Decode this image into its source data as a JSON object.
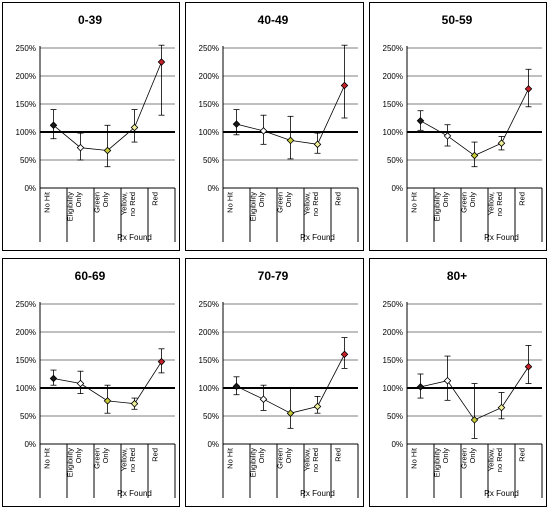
{
  "categories": [
    "No Hit",
    "Eligibility Only",
    "Green Only",
    "Yellow, no Red",
    "Red"
  ],
  "group_label": "Rx Found",
  "point_colors": [
    "#1a1a1a",
    "#ffffff",
    "#c8cc3a",
    "#f0ef9a",
    "#c8202a"
  ],
  "chart_data": [
    {
      "type": "scatter",
      "title": "0-39",
      "categories": [
        "No Hit",
        "Eligibility Only",
        "Green Only",
        "Yellow, no Red",
        "Red"
      ],
      "values": [
        112,
        72,
        67,
        108,
        225
      ],
      "error_low": [
        88,
        50,
        38,
        82,
        130
      ],
      "error_high": [
        140,
        98,
        112,
        140,
        255
      ],
      "ylim": [
        0,
        250
      ],
      "yticks": [
        "0%",
        "50%",
        "100%",
        "150%",
        "200%",
        "250%"
      ],
      "reference_line": 100,
      "grid": true,
      "xlabel": "Rx Found"
    },
    {
      "type": "scatter",
      "title": "40-49",
      "categories": [
        "No Hit",
        "Eligibility Only",
        "Green Only",
        "Yellow, no Red",
        "Red"
      ],
      "values": [
        114,
        102,
        85,
        78,
        183
      ],
      "error_low": [
        95,
        78,
        52,
        62,
        125
      ],
      "error_high": [
        140,
        130,
        128,
        98,
        255
      ],
      "ylim": [
        0,
        250
      ],
      "yticks": [
        "0%",
        "50%",
        "100%",
        "150%",
        "200%",
        "250%"
      ],
      "reference_line": 100,
      "grid": true,
      "xlabel": "Rx Found"
    },
    {
      "type": "scatter",
      "title": "50-59",
      "categories": [
        "No Hit",
        "Eligibility Only",
        "Green Only",
        "Yellow, no Red",
        "Red"
      ],
      "values": [
        120,
        93,
        58,
        80,
        177
      ],
      "error_low": [
        103,
        75,
        38,
        68,
        145
      ],
      "error_high": [
        138,
        113,
        82,
        92,
        212
      ],
      "ylim": [
        0,
        250
      ],
      "yticks": [
        "0%",
        "50%",
        "100%",
        "150%",
        "200%",
        "250%"
      ],
      "reference_line": 100,
      "grid": true,
      "xlabel": "Rx Found"
    },
    {
      "type": "scatter",
      "title": "60-69",
      "categories": [
        "No Hit",
        "Eligibility Only",
        "Green Only",
        "Yellow, no Red",
        "Red"
      ],
      "values": [
        117,
        108,
        77,
        72,
        147
      ],
      "error_low": [
        105,
        90,
        55,
        62,
        127
      ],
      "error_high": [
        132,
        130,
        105,
        82,
        170
      ],
      "ylim": [
        0,
        250
      ],
      "yticks": [
        "0%",
        "50%",
        "100%",
        "150%",
        "200%",
        "250%"
      ],
      "reference_line": 100,
      "grid": true,
      "xlabel": "Rx Found"
    },
    {
      "type": "scatter",
      "title": "70-79",
      "categories": [
        "No Hit",
        "Eligibility Only",
        "Green Only",
        "Yellow, no Red",
        "Red"
      ],
      "values": [
        103,
        80,
        55,
        67,
        160
      ],
      "error_low": [
        88,
        60,
        28,
        55,
        135
      ],
      "error_high": [
        120,
        105,
        100,
        85,
        190
      ],
      "ylim": [
        0,
        250
      ],
      "yticks": [
        "0%",
        "50%",
        "100%",
        "150%",
        "200%",
        "250%"
      ],
      "reference_line": 100,
      "grid": true,
      "xlabel": "Rx Found"
    },
    {
      "type": "scatter",
      "title": "80+",
      "categories": [
        "No Hit",
        "Eligibility Only",
        "Green Only",
        "Yellow, no Red",
        "Red"
      ],
      "values": [
        102,
        113,
        43,
        65,
        138
      ],
      "error_low": [
        82,
        78,
        10,
        45,
        108
      ],
      "error_high": [
        125,
        157,
        108,
        92,
        176
      ],
      "ylim": [
        0,
        250
      ],
      "yticks": [
        "0%",
        "50%",
        "100%",
        "150%",
        "200%",
        "250%"
      ],
      "reference_line": 100,
      "grid": true,
      "xlabel": "Rx Found"
    }
  ]
}
